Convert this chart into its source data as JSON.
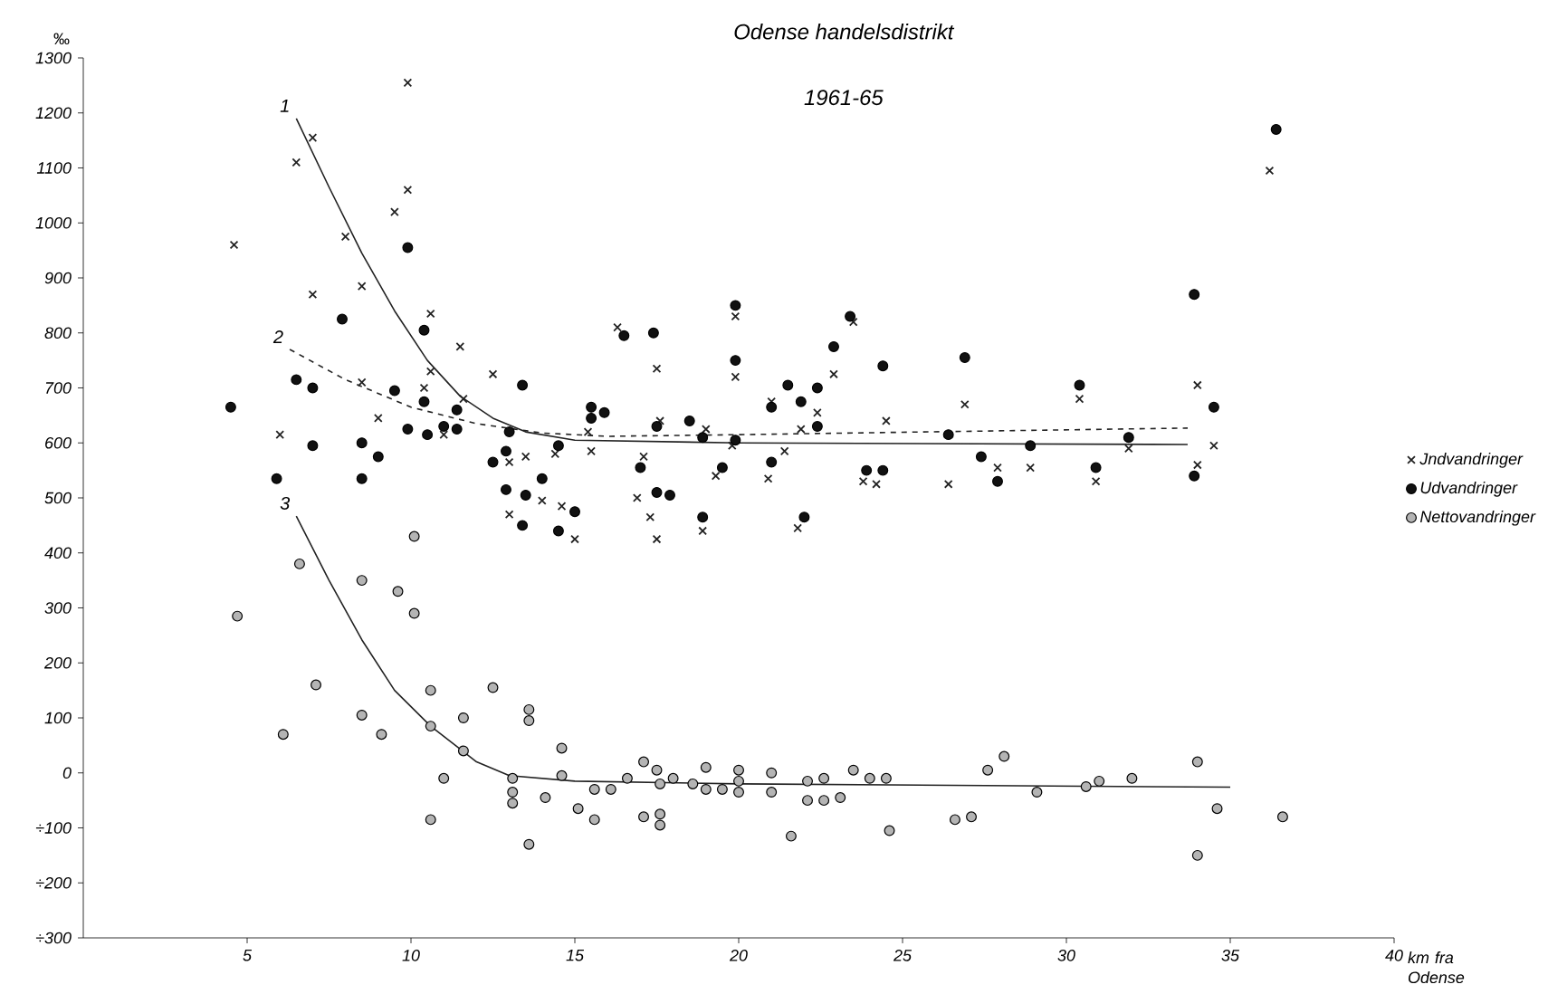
{
  "chart_data": {
    "type": "scatter",
    "title": "Odense handelsdistrikt",
    "subtitle": "1961-65",
    "xlabel": "km fra Odense",
    "ylabel": "‰",
    "xlim": [
      0,
      40
    ],
    "ylim": [
      -300,
      1300
    ],
    "xticks": [
      5,
      10,
      15,
      20,
      25,
      30,
      35,
      40
    ],
    "yticks": [
      {
        "value": -300,
        "label": "÷300"
      },
      {
        "value": -200,
        "label": "÷200"
      },
      {
        "value": -100,
        "label": "÷100"
      },
      0,
      100,
      200,
      300,
      400,
      500,
      600,
      700,
      800,
      900,
      1000,
      1100,
      1200,
      1300
    ],
    "grid": false,
    "legend": "right",
    "series": [
      {
        "name": "Jndvandringer",
        "marker": "cross",
        "color": "#222222",
        "x": [
          4.6,
          6.5,
          7.0,
          8.0,
          8.5,
          7.0,
          6.0,
          8.5,
          9.0,
          9.5,
          9.9,
          9.9,
          10.6,
          10.6,
          10.4,
          11.0,
          11.6,
          11.5,
          12.5,
          13.0,
          13.5,
          13.0,
          14.0,
          14.6,
          15.0,
          14.4,
          15.5,
          15.4,
          16.3,
          17.5,
          17.1,
          16.9,
          17.3,
          17.5,
          17.6,
          19.0,
          18.9,
          19.3,
          19.9,
          19.9,
          19.8,
          20.9,
          21.0,
          21.4,
          21.9,
          21.8,
          22.4,
          22.9,
          23.5,
          23.8,
          24.2,
          24.5,
          26.4,
          26.9,
          27.9,
          28.9,
          30.4,
          30.9,
          31.9,
          34.0,
          34.0,
          34.5,
          36.2
        ],
        "values": [
          960,
          1110,
          1155,
          975,
          885,
          870,
          615,
          710,
          645,
          1020,
          1255,
          1060,
          835,
          730,
          700,
          615,
          680,
          775,
          725,
          565,
          575,
          470,
          495,
          485,
          425,
          580,
          585,
          620,
          810,
          735,
          575,
          500,
          465,
          425,
          640,
          625,
          440,
          540,
          830,
          720,
          595,
          535,
          675,
          585,
          625,
          445,
          655,
          725,
          820,
          530,
          525,
          640,
          525,
          670,
          555,
          555,
          680,
          530,
          590,
          705,
          560,
          595,
          1095
        ]
      },
      {
        "name": "Udvandringer",
        "marker": "circle",
        "color": "#111111",
        "x": [
          4.5,
          5.9,
          6.5,
          7.0,
          7.0,
          7.9,
          8.5,
          8.5,
          9.0,
          9.5,
          9.9,
          9.9,
          10.4,
          10.4,
          10.5,
          11.0,
          11.4,
          11.4,
          12.5,
          12.9,
          13.0,
          12.9,
          13.4,
          13.5,
          13.4,
          14.0,
          14.5,
          15.0,
          14.5,
          15.5,
          15.5,
          15.9,
          16.5,
          17.4,
          17.0,
          17.5,
          17.5,
          17.9,
          18.5,
          18.9,
          19.5,
          19.9,
          19.9,
          19.9,
          21.0,
          21.0,
          18.9,
          21.5,
          21.9,
          22.4,
          22.4,
          22.9,
          23.4,
          22.0,
          23.9,
          24.4,
          24.4,
          26.4,
          26.9,
          27.4,
          27.9,
          28.9,
          30.4,
          30.9,
          31.9,
          33.9,
          33.9,
          34.5,
          36.4
        ],
        "values": [
          665,
          535,
          715,
          700,
          595,
          825,
          600,
          535,
          575,
          695,
          955,
          625,
          805,
          675,
          615,
          630,
          625,
          660,
          565,
          515,
          620,
          585,
          705,
          505,
          450,
          535,
          440,
          475,
          595,
          665,
          645,
          655,
          795,
          800,
          555,
          630,
          510,
          505,
          640,
          465,
          555,
          605,
          850,
          750,
          565,
          665,
          610,
          705,
          675,
          700,
          630,
          775,
          830,
          465,
          550,
          550,
          740,
          615,
          755,
          575,
          530,
          595,
          705,
          555,
          610,
          870,
          540,
          665,
          1170
        ]
      },
      {
        "name": "Nettovandringer",
        "marker": "circle",
        "color": "#b4b4b4",
        "x": [
          4.7,
          6.1,
          6.6,
          7.1,
          8.5,
          8.5,
          9.1,
          9.6,
          10.1,
          10.1,
          10.6,
          10.6,
          10.6,
          11.0,
          11.6,
          11.6,
          12.5,
          13.1,
          13.1,
          13.1,
          13.6,
          13.6,
          13.6,
          14.1,
          14.6,
          14.6,
          15.1,
          15.6,
          15.6,
          16.1,
          16.6,
          17.1,
          17.1,
          17.5,
          17.6,
          17.6,
          17.6,
          18.0,
          18.6,
          19.0,
          19.0,
          19.5,
          20.0,
          20.0,
          20.0,
          21.0,
          21.0,
          21.6,
          22.1,
          22.1,
          22.6,
          22.6,
          23.1,
          23.5,
          24.0,
          24.5,
          24.6,
          26.6,
          27.1,
          27.6,
          28.1,
          29.1,
          30.6,
          31.0,
          32.0,
          34.0,
          34.0,
          34.6,
          36.6
        ],
        "values": [
          285,
          70,
          380,
          160,
          350,
          105,
          70,
          330,
          430,
          290,
          150,
          85,
          -85,
          -10,
          100,
          40,
          155,
          -10,
          -35,
          -55,
          115,
          95,
          -130,
          -45,
          -5,
          45,
          -65,
          -30,
          -85,
          -30,
          -10,
          20,
          -80,
          5,
          -20,
          -75,
          -95,
          -10,
          -20,
          10,
          -30,
          -30,
          5,
          -15,
          -35,
          0,
          -35,
          -115,
          -15,
          -50,
          -10,
          -50,
          -45,
          5,
          -10,
          -10,
          -105,
          -85,
          -80,
          5,
          30,
          -35,
          -25,
          -15,
          -10,
          20,
          -150,
          -65,
          -80
        ]
      },
      {
        "type": "line",
        "color": "#222222",
        "line_style": "solid",
        "x": [
          6.5,
          7.5,
          8.5,
          9.5,
          10.5,
          11.5,
          12.5,
          13.5,
          15.0,
          20.0,
          33.7
        ],
        "values": [
          1190,
          1065,
          945,
          840,
          750,
          685,
          645,
          620,
          605,
          600,
          597
        ]
      },
      {
        "type": "line",
        "color": "#222222",
        "line_style": "dashed",
        "x": [
          6.3,
          8.0,
          10.0,
          12.0,
          14.0,
          16.0,
          20.0,
          33.7
        ],
        "values": [
          770,
          715,
          665,
          635,
          618,
          612,
          615,
          627
        ]
      },
      {
        "type": "line",
        "color": "#222222",
        "line_style": "solid",
        "x": [
          6.5,
          7.5,
          8.5,
          9.5,
          10.6,
          12.0,
          13.0,
          15.0,
          20.0,
          35.0
        ],
        "values": [
          467,
          350,
          242,
          150,
          85,
          20,
          -5,
          -15,
          -20,
          -26
        ]
      }
    ],
    "annotations": [
      "1",
      "2",
      "3"
    ]
  }
}
